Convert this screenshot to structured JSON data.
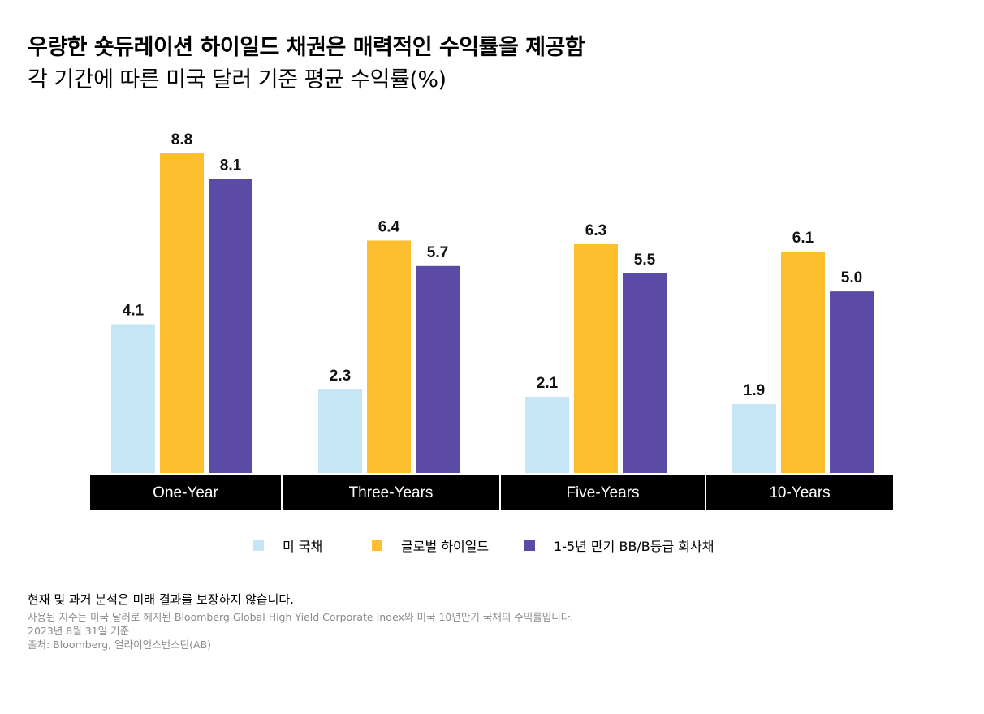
{
  "title": "우량한 숏듀레이션 하이일드 채권은 매력적인 수익률을 제공함",
  "subtitle": "각 기간에 따른 미국 달러 기준 평균 수익률(%)",
  "colors": {
    "treasury": "#c7e6f5",
    "global_hy": "#fdbf2d",
    "bb_b": "#5b4aa6",
    "label_bar": "#000000"
  },
  "chart_data": {
    "type": "bar",
    "title": "각 기간에 따른 미국 달러 기준 평균 수익률(%)",
    "categories": [
      "One-Year",
      "Three-Years",
      "Five-Years",
      "10-Years"
    ],
    "series": [
      {
        "name": "미 국채",
        "values": [
          4.1,
          2.3,
          2.1,
          1.9
        ]
      },
      {
        "name": "글로벌 하이일드",
        "values": [
          8.8,
          6.4,
          6.3,
          6.1
        ]
      },
      {
        "name": "1-5년 만기 BB/B등급 회사채",
        "values": [
          8.1,
          5.7,
          5.5,
          5.0
        ]
      }
    ],
    "ylim": [
      0,
      8.8
    ],
    "xlabel": "",
    "ylabel": "",
    "grid": false,
    "legend": "bottom"
  },
  "legend": {
    "items": [
      "미 국채",
      "글로벌 하이일드",
      "1-5년 만기 BB/B등급 회사채"
    ]
  },
  "notes": {
    "main": "현재 및 과거 분석은 미래 결과를 보장하지 않습니다.",
    "lines": [
      "사용된 지수는 미국 달러로 헤지된 Bloomberg Global High Yield Corporate Index와 미국 10년만기 국채의 수익률입니다.",
      "2023년 8월 31일 기준",
      "출처: Bloomberg, 얼라이언스번스틴(AB)"
    ]
  }
}
